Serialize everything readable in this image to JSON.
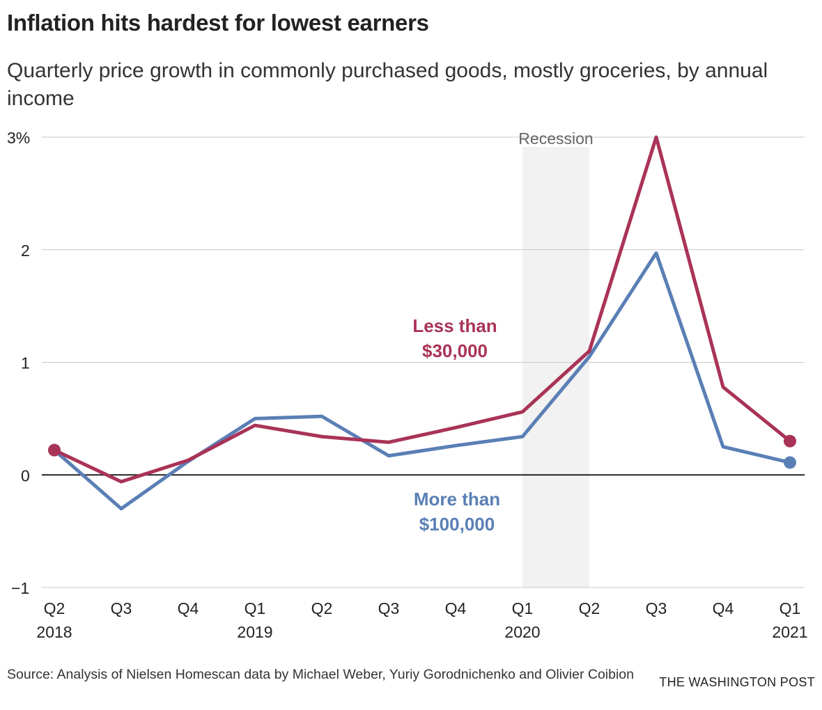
{
  "chart_data": {
    "type": "line",
    "title": "Inflation hits hardest for lowest earners",
    "subtitle": "Quarterly price growth in commonly purchased goods, mostly groceries, by annual income",
    "x": [
      "Q2 2018",
      "Q3 2018",
      "Q4 2018",
      "Q1 2019",
      "Q2 2019",
      "Q3 2019",
      "Q4 2019",
      "Q1 2020",
      "Q2 2020",
      "Q3 2020",
      "Q4 2020",
      "Q1 2021"
    ],
    "xtick_labels": [
      [
        "Q2",
        "2018"
      ],
      [
        "Q3",
        ""
      ],
      [
        "Q4",
        ""
      ],
      [
        "Q1",
        "2019"
      ],
      [
        "Q2",
        ""
      ],
      [
        "Q3",
        ""
      ],
      [
        "Q4",
        ""
      ],
      [
        "Q1",
        "2020"
      ],
      [
        "Q2",
        ""
      ],
      [
        "Q3",
        ""
      ],
      [
        "Q4",
        ""
      ],
      [
        "Q1",
        "2021"
      ]
    ],
    "yticks": [
      {
        "v": 3,
        "label": "3%"
      },
      {
        "v": 2,
        "label": "2"
      },
      {
        "v": 1,
        "label": "1"
      },
      {
        "v": 0,
        "label": "0"
      },
      {
        "v": -1,
        "label": "−1"
      }
    ],
    "ylim": [
      -1,
      3
    ],
    "grid": true,
    "series": [
      {
        "name": "Less than $30,000",
        "label_lines": [
          "Less than",
          "$30,000"
        ],
        "color": "#a93356",
        "values": [
          0.22,
          -0.06,
          0.13,
          0.44,
          0.34,
          0.29,
          0.42,
          0.56,
          1.1,
          3.0,
          0.78,
          0.3
        ]
      },
      {
        "name": "More than $100,000",
        "label_lines": [
          "More than",
          "$100,000"
        ],
        "color": "#5a7fb5",
        "values": [
          0.22,
          -0.3,
          0.12,
          0.5,
          0.52,
          0.17,
          0.26,
          0.34,
          1.05,
          1.97,
          0.25,
          0.11
        ]
      }
    ],
    "annotations": [
      {
        "label": "Recession",
        "from": "Q1 2020",
        "to": "Q2 2020",
        "color": "#f2f2f2"
      }
    ]
  },
  "source": "Source: Analysis of Nielsen Homescan data by Michael Weber, Yuriy Gorodnichenko and Olivier Coibion",
  "credit": "THE WASHINGTON POST"
}
